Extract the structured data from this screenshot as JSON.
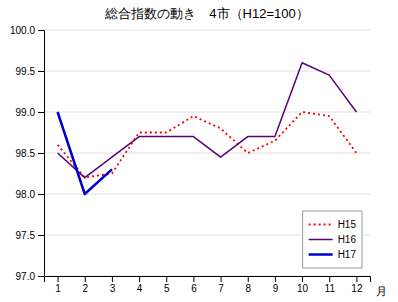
{
  "chart_data": {
    "type": "line",
    "title": "総合指数の動き　4市（H12=100）",
    "x_label": "月",
    "x": [
      1,
      2,
      3,
      4,
      5,
      6,
      7,
      8,
      9,
      10,
      11,
      12
    ],
    "xlim": [
      0.5,
      12.5
    ],
    "xticks": [
      1,
      2,
      3,
      4,
      5,
      6,
      7,
      8,
      9,
      10,
      11,
      12
    ],
    "ylim": [
      97.0,
      100.0
    ],
    "yticks": [
      {
        "value": 97.0,
        "label": "97.0"
      },
      97.5,
      {
        "value": 98.0,
        "label": "98.0"
      },
      98.5,
      {
        "value": 99.0,
        "label": "99.0"
      },
      99.5,
      {
        "value": 100.0,
        "label": "100.0"
      }
    ],
    "grid": "y",
    "legend": "lower right",
    "series": [
      {
        "name": "H15",
        "color": "#ff0000",
        "line_style": "dotted",
        "values": [
          98.6,
          98.2,
          98.25,
          98.75,
          98.75,
          98.95,
          98.8,
          98.5,
          98.65,
          99.0,
          98.95,
          98.5
        ]
      },
      {
        "name": "H16",
        "color": "#5a0078",
        "line_style": "solid",
        "values": [
          98.5,
          98.2,
          98.45,
          98.7,
          98.7,
          98.7,
          98.45,
          98.7,
          98.7,
          99.6,
          99.45,
          99.0
        ]
      },
      {
        "name": "H17",
        "color": "#0000cc",
        "line_style": "solid",
        "values": [
          99.0,
          98.0,
          98.3,
          null,
          null,
          null,
          null,
          null,
          null,
          null,
          null,
          null
        ]
      }
    ]
  }
}
